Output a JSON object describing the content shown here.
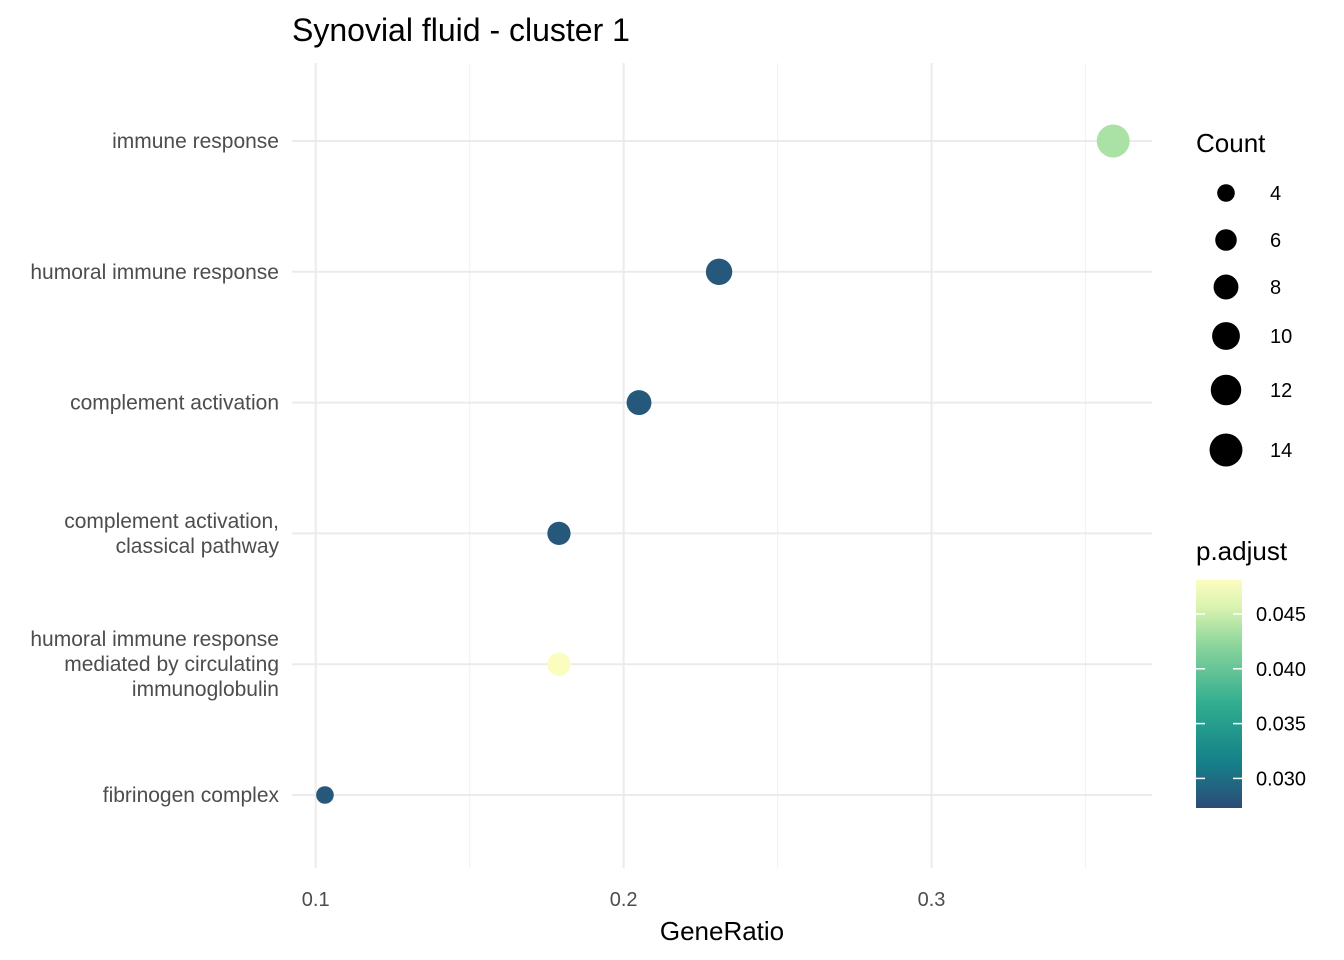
{
  "chart_data": {
    "type": "scatter",
    "title": "Synovial fluid - cluster 1",
    "xlabel": "GeneRatio",
    "ylabel": "",
    "xlim": [
      0.0923,
      0.3716
    ],
    "xticks": [
      0.1,
      0.2,
      0.3
    ],
    "xtick_labels": [
      "0.1",
      "0.2",
      "0.3"
    ],
    "xminor": [
      0.15,
      0.25,
      0.35
    ],
    "categories": [
      "immune response",
      "humoral immune response",
      "complement activation",
      "complement activation,\nclassical pathway",
      "humoral immune response\nmediated by circulating\nimmunoglobulin",
      "fibrinogen complex"
    ],
    "points": [
      {
        "category": "immune response",
        "gene_ratio": 0.359,
        "count": 14,
        "p_adjust": 0.0435
      },
      {
        "category": "humoral immune response",
        "gene_ratio": 0.231,
        "count": 9,
        "p_adjust": 0.0283
      },
      {
        "category": "complement activation",
        "gene_ratio": 0.205,
        "count": 8,
        "p_adjust": 0.0283
      },
      {
        "category": "complement activation,\nclassical pathway",
        "gene_ratio": 0.179,
        "count": 7,
        "p_adjust": 0.0283
      },
      {
        "category": "humoral immune response\nmediated by circulating\nimmunoglobulin",
        "gene_ratio": 0.179,
        "count": 7,
        "p_adjust": 0.048
      },
      {
        "category": "fibrinogen complex",
        "gene_ratio": 0.103,
        "count": 4,
        "p_adjust": 0.0283
      }
    ],
    "size_legend": {
      "title": "Count",
      "values": [
        4,
        6,
        8,
        10,
        12,
        14
      ],
      "labels": [
        "4",
        "6",
        "8",
        "10",
        "12",
        "14"
      ],
      "color": "#000000"
    },
    "color_legend": {
      "title": "p.adjust",
      "range": [
        0.0273,
        0.0481
      ],
      "ticks": [
        0.03,
        0.035,
        0.04,
        0.045
      ],
      "tick_labels": [
        "0.030",
        "0.035",
        "0.040",
        "0.045"
      ],
      "colors": [
        "#2c4c78",
        "#158089",
        "#2fac8f",
        "#86d39b",
        "#d9f3b0",
        "#fcfdbf"
      ]
    },
    "legend_position": "right",
    "grid": true
  }
}
